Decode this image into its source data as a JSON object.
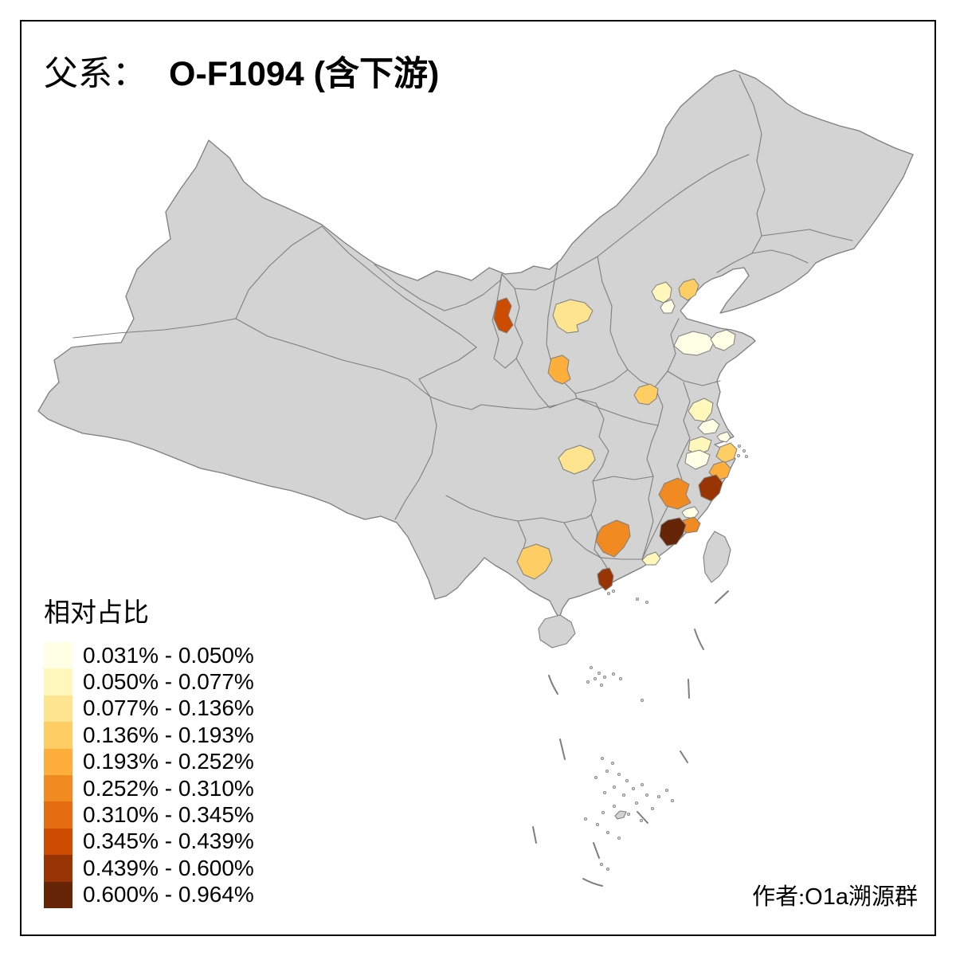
{
  "title": {
    "label": "父系：",
    "value": "O-F1094 (含下游)"
  },
  "legend": {
    "title": "相对占比",
    "bins": [
      {
        "range": "0.031% - 0.050%",
        "color": "#FFFFE5"
      },
      {
        "range": "0.050% - 0.077%",
        "color": "#FFF7BC"
      },
      {
        "range": "0.077% - 0.136%",
        "color": "#FEE48F"
      },
      {
        "range": "0.136% - 0.193%",
        "color": "#FECE65"
      },
      {
        "range": "0.193% - 0.252%",
        "color": "#FDAE3B"
      },
      {
        "range": "0.252% - 0.310%",
        "color": "#F28A22"
      },
      {
        "range": "0.310% - 0.345%",
        "color": "#E56C10"
      },
      {
        "range": "0.345% - 0.439%",
        "color": "#CC4C02"
      },
      {
        "range": "0.439% - 0.600%",
        "color": "#993404"
      },
      {
        "range": "0.600% - 0.964%",
        "color": "#662506"
      }
    ]
  },
  "credit": {
    "prefix": "作者:",
    "latin": "O1a",
    "suffix": "溯源群"
  },
  "map": {
    "land_color": "#D3D3D3",
    "boundary_color": "#7E7E7E",
    "sea_color": "#FFFFFF",
    "frame_color": "#000000",
    "regions": [
      {
        "name": "ningxia-north",
        "bin": 8
      },
      {
        "name": "shanxi-central",
        "bin": 3
      },
      {
        "name": "shaanxi-central",
        "bin": 5
      },
      {
        "name": "henan-south",
        "bin": 4
      },
      {
        "name": "beijing",
        "bin": 2
      },
      {
        "name": "tianjin",
        "bin": 1
      },
      {
        "name": "liaoning-huludao",
        "bin": 4
      },
      {
        "name": "shandong-west",
        "bin": 1
      },
      {
        "name": "shandong-east",
        "bin": 1
      },
      {
        "name": "jiangsu-central",
        "bin": 2
      },
      {
        "name": "jiangsu-nantong",
        "bin": 1
      },
      {
        "name": "shanghai-area",
        "bin": 1
      },
      {
        "name": "zhejiang-north",
        "bin": 2
      },
      {
        "name": "zhejiang-hangzhou",
        "bin": 1
      },
      {
        "name": "ningbo",
        "bin": 4
      },
      {
        "name": "taizhou-zhejiang",
        "bin": 5
      },
      {
        "name": "wenzhou",
        "bin": 9
      },
      {
        "name": "fujian-sanming",
        "bin": 6
      },
      {
        "name": "putian",
        "bin": 1
      },
      {
        "name": "quanzhou",
        "bin": 6
      },
      {
        "name": "zhangzhou-xiamen",
        "bin": 10
      },
      {
        "name": "hunan-chenzhou",
        "bin": 6
      },
      {
        "name": "guangdong-chaoshan",
        "bin": 2
      },
      {
        "name": "pearl-river-west",
        "bin": 9
      },
      {
        "name": "sichuan-east",
        "bin": 3
      },
      {
        "name": "yunnan-east",
        "bin": 4
      }
    ]
  }
}
